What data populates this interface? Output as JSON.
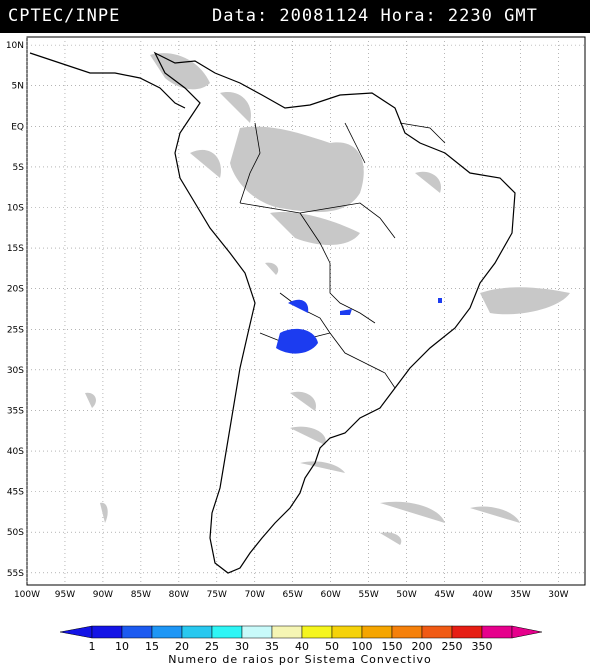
{
  "header": {
    "source": "CPTEC/INPE",
    "datetime": "Data: 20081124 Hora: 2230 GMT"
  },
  "map": {
    "lat_ticks": [
      "10N",
      "5N",
      "EQ",
      "5S",
      "10S",
      "15S",
      "20S",
      "25S",
      "30S",
      "35S",
      "40S",
      "45S",
      "50S",
      "55S"
    ],
    "lon_ticks": [
      "100W",
      "95W",
      "90W",
      "85W",
      "80W",
      "75W",
      "70W",
      "65W",
      "60W",
      "55W",
      "50W",
      "45W",
      "40W",
      "35W",
      "30W"
    ],
    "lat_range": [
      11,
      -56.5
    ],
    "lon_range": [
      -100,
      -26.5
    ],
    "colors": {
      "land_outline": "#000000",
      "cloud": "#c8c8c8",
      "lightning": "#1c3cf0"
    }
  },
  "legend": {
    "labels": [
      "1",
      "10",
      "15",
      "20",
      "25",
      "30",
      "35",
      "40",
      "50",
      "100",
      "150",
      "200",
      "250",
      "350"
    ],
    "colors": [
      "#1414e6",
      "#1c5af0",
      "#1e96f5",
      "#28c8ef",
      "#2ef5f5",
      "#c8fafa",
      "#f5f5b4",
      "#f5f51e",
      "#f5d20a",
      "#f5a500",
      "#f5800a",
      "#f05a14",
      "#e61e14",
      "#e6008c"
    ],
    "caption": "Numero de raios por Sistema Convectivo"
  }
}
